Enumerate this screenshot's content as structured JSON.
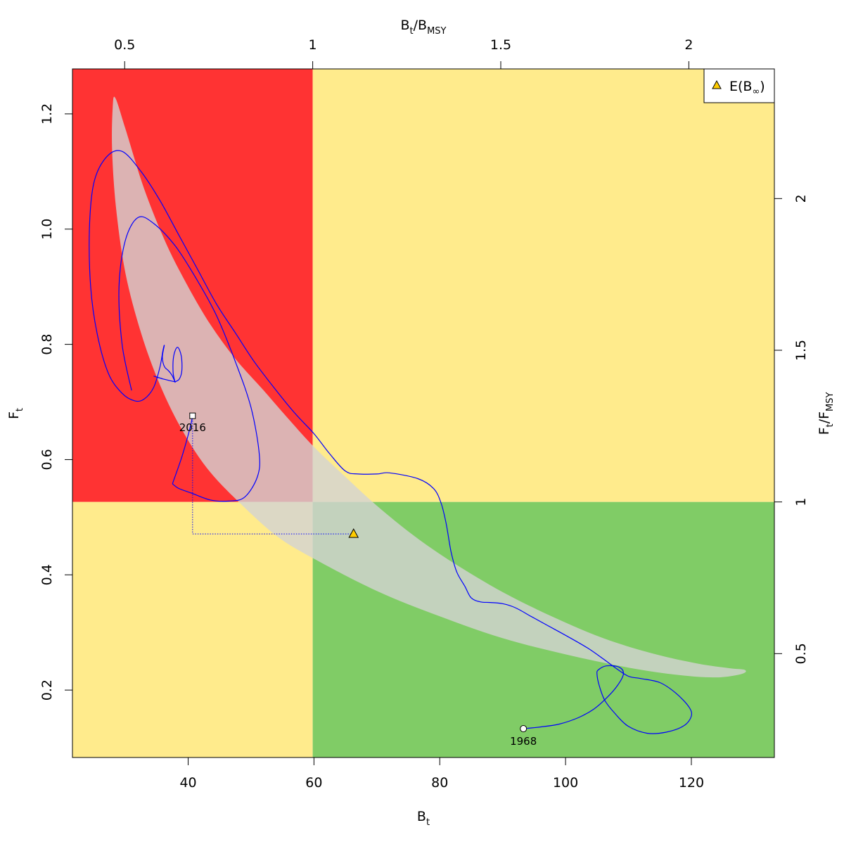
{
  "chart_data": {
    "type": "scatter",
    "title": "",
    "axes": {
      "bottom": {
        "label": "B",
        "label_sub": "t",
        "range": [
          21.6,
          133.2
        ],
        "ticks": [
          40,
          60,
          80,
          100,
          120
        ]
      },
      "left": {
        "label": "F",
        "label_sub": "t",
        "range": [
          0.083,
          1.278
        ],
        "ticks": [
          0.2,
          0.4,
          0.6,
          0.8,
          1.0,
          1.2
        ],
        "tick_labels": [
          "0.2",
          "0.4",
          "0.6",
          "0.8",
          "1.0",
          "1.2"
        ]
      },
      "top": {
        "label_parts": [
          "B",
          "t",
          "/B",
          "MSY"
        ],
        "ticks": [
          0.5,
          1,
          1.5,
          2
        ],
        "tick_labels": [
          "0.5",
          "1",
          "1.5",
          "2"
        ],
        "bmsy": 59.8
      },
      "right": {
        "label_parts": [
          "F",
          "t",
          "/F",
          "MSY"
        ],
        "ticks": [
          0.5,
          1,
          1.5,
          2
        ],
        "tick_labels": [
          "0.5",
          "1",
          "1.5",
          "2"
        ],
        "fmsy": 0.5265
      }
    },
    "grid": false,
    "quadrants": {
      "red": "#ff3333",
      "yellow": "#ffeb8c",
      "green": "#80cc66"
    },
    "confidence_region": {
      "color": "#d3d3d3",
      "opacity": 0.8,
      "points": [
        [
          28.4,
          1.228
        ],
        [
          30.0,
          1.175
        ],
        [
          33.0,
          1.07
        ],
        [
          36.5,
          0.975
        ],
        [
          40.0,
          0.9
        ],
        [
          43.5,
          0.835
        ],
        [
          47.5,
          0.775
        ],
        [
          52.0,
          0.72
        ],
        [
          56.0,
          0.67
        ],
        [
          60.0,
          0.622
        ],
        [
          65.0,
          0.57
        ],
        [
          70.0,
          0.52
        ],
        [
          76.0,
          0.467
        ],
        [
          82.0,
          0.422
        ],
        [
          90.0,
          0.37
        ],
        [
          98.0,
          0.327
        ],
        [
          106.0,
          0.29
        ],
        [
          114.0,
          0.263
        ],
        [
          121.0,
          0.246
        ],
        [
          126.0,
          0.238
        ],
        [
          128.5,
          0.235
        ],
        [
          128.0,
          0.228
        ],
        [
          124.0,
          0.222
        ],
        [
          118.0,
          0.226
        ],
        [
          110.0,
          0.239
        ],
        [
          100.0,
          0.262
        ],
        [
          90.0,
          0.29
        ],
        [
          80.0,
          0.328
        ],
        [
          70.0,
          0.372
        ],
        [
          60.0,
          0.428
        ],
        [
          54.0,
          0.468
        ],
        [
          48.0,
          0.527
        ],
        [
          43.0,
          0.585
        ],
        [
          39.0,
          0.652
        ],
        [
          35.5,
          0.73
        ],
        [
          32.5,
          0.82
        ],
        [
          30.0,
          0.925
        ],
        [
          28.5,
          1.04
        ],
        [
          27.9,
          1.14
        ],
        [
          28.0,
          1.21
        ]
      ]
    },
    "trajectory": {
      "color": "#0000ff",
      "first_year": "1968",
      "last_year": "2016",
      "points": [
        [
          93.3,
          0.133
        ],
        [
          96.0,
          0.136
        ],
        [
          99.0,
          0.141
        ],
        [
          102.0,
          0.152
        ],
        [
          104.5,
          0.167
        ],
        [
          106.5,
          0.186
        ],
        [
          108.2,
          0.207
        ],
        [
          109.2,
          0.228
        ],
        [
          108.5,
          0.24
        ],
        [
          106.5,
          0.242
        ],
        [
          105.2,
          0.235
        ],
        [
          105.0,
          0.228
        ],
        [
          105.3,
          0.21
        ],
        [
          106.2,
          0.183
        ],
        [
          107.8,
          0.16
        ],
        [
          110.0,
          0.137
        ],
        [
          113.0,
          0.125
        ],
        [
          116.0,
          0.127
        ],
        [
          118.8,
          0.138
        ],
        [
          120.0,
          0.155
        ],
        [
          119.6,
          0.171
        ],
        [
          117.5,
          0.195
        ],
        [
          115.0,
          0.213
        ],
        [
          112.0,
          0.22
        ],
        [
          110.0,
          0.224
        ],
        [
          108.0,
          0.238
        ],
        [
          106.0,
          0.254
        ],
        [
          103.5,
          0.273
        ],
        [
          100.5,
          0.292
        ],
        [
          97.0,
          0.313
        ],
        [
          94.5,
          0.328
        ],
        [
          92.0,
          0.343
        ],
        [
          90.0,
          0.35
        ],
        [
          88.0,
          0.352
        ],
        [
          86.5,
          0.353
        ],
        [
          85.0,
          0.36
        ],
        [
          84.0,
          0.38
        ],
        [
          82.7,
          0.405
        ],
        [
          81.8,
          0.44
        ],
        [
          81.0,
          0.49
        ],
        [
          80.2,
          0.525
        ],
        [
          79.0,
          0.55
        ],
        [
          76.5,
          0.567
        ],
        [
          72.0,
          0.577
        ],
        [
          70.0,
          0.575
        ],
        [
          67.0,
          0.575
        ],
        [
          65.0,
          0.58
        ],
        [
          62.5,
          0.61
        ],
        [
          60.0,
          0.645
        ],
        [
          57.0,
          0.68
        ],
        [
          54.0,
          0.72
        ],
        [
          50.5,
          0.77
        ],
        [
          47.5,
          0.82
        ],
        [
          44.5,
          0.87
        ],
        [
          41.5,
          0.93
        ],
        [
          38.5,
          0.99
        ],
        [
          35.5,
          1.05
        ],
        [
          32.5,
          1.1
        ],
        [
          29.5,
          1.135
        ],
        [
          27.0,
          1.125
        ],
        [
          25.0,
          1.08
        ],
        [
          24.3,
          1.0
        ],
        [
          24.5,
          0.9
        ],
        [
          25.5,
          0.82
        ],
        [
          27.3,
          0.75
        ],
        [
          29.5,
          0.715
        ],
        [
          31.5,
          0.702
        ],
        [
          33.0,
          0.705
        ],
        [
          34.5,
          0.725
        ],
        [
          35.5,
          0.76
        ],
        [
          36.0,
          0.79
        ],
        [
          36.2,
          0.798
        ],
        [
          35.9,
          0.78
        ],
        [
          36.0,
          0.768
        ],
        [
          36.3,
          0.76
        ],
        [
          36.8,
          0.755
        ],
        [
          37.2,
          0.75
        ],
        [
          37.5,
          0.745
        ],
        [
          37.9,
          0.735
        ],
        [
          37.9,
          0.735
        ]
      ],
      "segment_b": [
        [
          37.9,
          0.735
        ],
        [
          37.6,
          0.752
        ],
        [
          37.7,
          0.78
        ],
        [
          38.3,
          0.795
        ],
        [
          38.9,
          0.78
        ],
        [
          39.0,
          0.755
        ],
        [
          38.6,
          0.74
        ],
        [
          37.9,
          0.735
        ]
      ],
      "segment_c": [
        [
          37.9,
          0.735
        ],
        [
          36.0,
          0.74
        ],
        [
          34.5,
          0.745
        ]
      ],
      "segment_d": [
        [
          31.0,
          0.72
        ],
        [
          29.5,
          0.8
        ],
        [
          29.0,
          0.9
        ],
        [
          30.0,
          0.98
        ],
        [
          32.0,
          1.02
        ],
        [
          34.5,
          1.01
        ],
        [
          38.0,
          0.97
        ],
        [
          41.5,
          0.91
        ],
        [
          44.5,
          0.85
        ],
        [
          47.5,
          0.77
        ],
        [
          50.0,
          0.69
        ],
        [
          51.3,
          0.61
        ],
        [
          51.0,
          0.57
        ],
        [
          49.0,
          0.535
        ],
        [
          46.5,
          0.528
        ],
        [
          43.5,
          0.53
        ],
        [
          40.5,
          0.542
        ],
        [
          38.5,
          0.55
        ],
        [
          37.5,
          0.558
        ]
      ],
      "segment_e": [
        [
          37.5,
          0.558
        ],
        [
          39.0,
          0.605
        ],
        [
          40.3,
          0.655
        ],
        [
          40.7,
          0.676
        ]
      ],
      "last_point": [
        40.7,
        0.676
      ],
      "first_point": [
        93.3,
        0.133
      ]
    },
    "expected_point": {
      "x": 66.3,
      "y": 0.471,
      "color": "#ffcc00"
    },
    "legend": {
      "label_main": "E(B",
      "label_sym": "∞",
      "label_end": ")",
      "position": "top-right"
    }
  }
}
